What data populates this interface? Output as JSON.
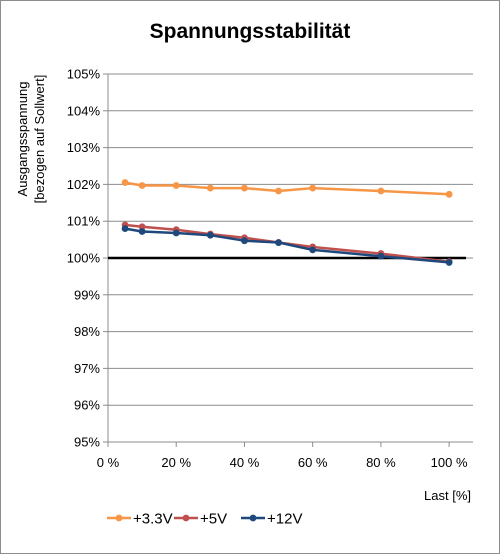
{
  "chart_data": {
    "type": "line",
    "title": "Spannungsstabilität",
    "ylabel_lines": [
      "Ausgangsspannung",
      "[bezogen auf Sollwert]"
    ],
    "xlabel": "Last [%]",
    "x_ticks": [
      "0 %",
      "20 %",
      "40 %",
      "60 %",
      "80 %",
      "100 %"
    ],
    "y_ticks": [
      "95%",
      "96%",
      "97%",
      "98%",
      "99%",
      "100%",
      "101%",
      "102%",
      "103%",
      "104%",
      "105%"
    ],
    "xlim": [
      0,
      107
    ],
    "ylim": [
      95,
      105
    ],
    "grid": "horizontal",
    "legend_position": "bottom",
    "reference_line": {
      "y": 100,
      "color": "#000000"
    },
    "series": [
      {
        "name": "+3.3V",
        "color": "#f79646",
        "x": [
          5,
          10,
          20,
          30,
          40,
          50,
          60,
          80,
          100
        ],
        "y": [
          102.05,
          101.97,
          101.97,
          101.9,
          101.9,
          101.82,
          101.9,
          101.82,
          101.73
        ]
      },
      {
        "name": "+5V",
        "color": "#c0504d",
        "x": [
          5,
          10,
          20,
          30,
          40,
          50,
          60,
          80,
          100
        ],
        "y": [
          100.9,
          100.85,
          100.77,
          100.65,
          100.55,
          100.42,
          100.3,
          100.12,
          99.9
        ]
      },
      {
        "name": "+12V",
        "color": "#1f497d",
        "x": [
          5,
          10,
          20,
          30,
          40,
          50,
          60,
          80,
          100
        ],
        "y": [
          100.8,
          100.72,
          100.68,
          100.62,
          100.47,
          100.42,
          100.22,
          100.05,
          99.88
        ]
      }
    ]
  }
}
